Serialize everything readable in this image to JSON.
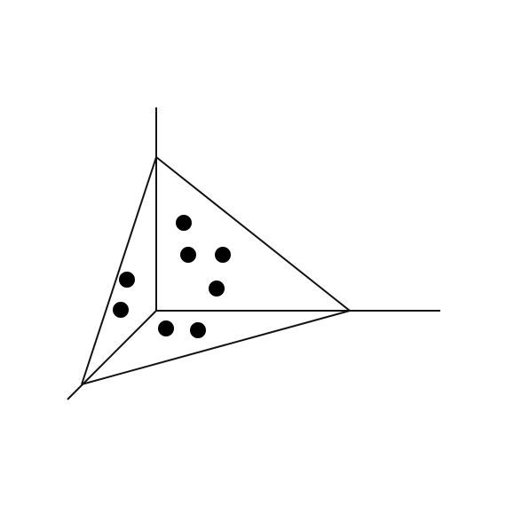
{
  "colors": {
    "background": "#ffffff",
    "stroke": "#111111",
    "dot": "#000000"
  },
  "diagram": {
    "description_counts": {
      "axes": 3,
      "triangle_edges": 3,
      "dots": 8
    }
  }
}
